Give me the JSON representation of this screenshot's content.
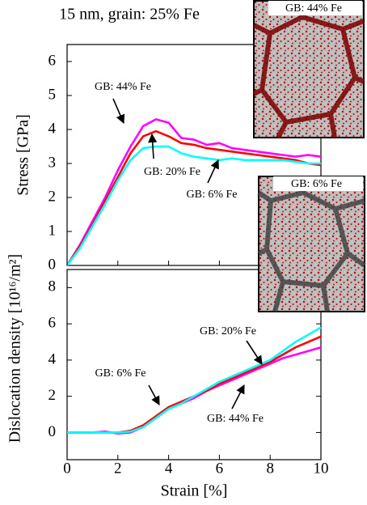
{
  "chart_data": [
    {
      "type": "line",
      "title": "15 nm, grain: 25% Fe",
      "y_label": "Stress [GPa]",
      "x": [
        0,
        0.5,
        1,
        1.5,
        2,
        2.5,
        3,
        3.5,
        4,
        4.5,
        5,
        5.5,
        6,
        6.5,
        7,
        7.5,
        8,
        8.5,
        9,
        9.5,
        10
      ],
      "xlim": [
        0,
        10
      ],
      "ylim": [
        0,
        6.5
      ],
      "yticks": [
        0,
        1,
        2,
        3,
        4,
        5,
        6
      ],
      "series": [
        {
          "name": "GB: 44% Fe",
          "color": "#ff00ff",
          "values": [
            0,
            0.6,
            1.3,
            2.0,
            2.8,
            3.5,
            4.1,
            4.3,
            4.2,
            3.75,
            3.7,
            3.55,
            3.6,
            3.45,
            3.4,
            3.35,
            3.3,
            3.25,
            3.2,
            3.25,
            3.2
          ]
        },
        {
          "name": "GB: 20% Fe",
          "color": "#ff0000",
          "values": [
            0,
            0.55,
            1.2,
            1.9,
            2.6,
            3.3,
            3.8,
            3.95,
            3.8,
            3.6,
            3.55,
            3.45,
            3.4,
            3.35,
            3.3,
            3.25,
            3.2,
            3.15,
            3.1,
            3.0,
            2.95
          ]
        },
        {
          "name": "GB: 6% Fe",
          "color": "#00ffff",
          "values": [
            0,
            0.5,
            1.15,
            1.8,
            2.5,
            3.1,
            3.45,
            3.5,
            3.5,
            3.3,
            3.2,
            3.15,
            3.1,
            3.15,
            3.1,
            3.1,
            3.1,
            3.1,
            3.05,
            3.0,
            3.0
          ]
        }
      ],
      "annotations": [
        {
          "text": "GB: 44% Fe"
        },
        {
          "text": "GB: 20% Fe"
        },
        {
          "text": "GB: 6% Fe"
        }
      ]
    },
    {
      "type": "line",
      "x_label": "Strain [%]",
      "y_label": "Dislocation density [10¹⁶/m²]",
      "x": [
        0,
        0.5,
        1,
        1.5,
        2,
        2.5,
        3,
        3.5,
        4,
        4.5,
        5,
        5.5,
        6,
        6.5,
        7,
        7.5,
        8,
        8.5,
        9,
        9.5,
        10
      ],
      "xlim": [
        0,
        10
      ],
      "xticks": [
        0,
        2,
        4,
        6,
        8,
        10
      ],
      "ylim": [
        -1.5,
        9
      ],
      "yticks": [
        0,
        2,
        4,
        6,
        8
      ],
      "series": [
        {
          "name": "GB: 44% Fe",
          "color": "#ff00ff",
          "values": [
            0,
            0,
            0,
            0.05,
            -0.05,
            0,
            0.3,
            0.8,
            1.3,
            1.6,
            1.9,
            2.3,
            2.6,
            2.9,
            3.2,
            3.5,
            3.8,
            4.1,
            4.3,
            4.5,
            4.7
          ]
        },
        {
          "name": "GB: 20% Fe",
          "color": "#ff0000",
          "values": [
            0,
            0,
            0,
            0,
            0,
            0.1,
            0.4,
            0.9,
            1.4,
            1.7,
            2.0,
            2.3,
            2.7,
            3.0,
            3.3,
            3.6,
            3.9,
            4.3,
            4.7,
            5.0,
            5.3
          ]
        },
        {
          "name": "GB: 6% Fe",
          "color": "#00ffff",
          "values": [
            0,
            0,
            0,
            0,
            0,
            0.05,
            0.3,
            0.8,
            1.3,
            1.6,
            2.0,
            2.4,
            2.8,
            3.1,
            3.4,
            3.7,
            4.0,
            4.5,
            5.0,
            5.4,
            5.8
          ]
        }
      ],
      "annotations": [
        {
          "text": "GB: 20% Fe"
        },
        {
          "text": "GB: 6% Fe"
        },
        {
          "text": "GB: 44% Fe"
        }
      ]
    }
  ],
  "insets": [
    {
      "label": "GB: 44% Fe"
    },
    {
      "label": "GB: 6% Fe"
    }
  ]
}
